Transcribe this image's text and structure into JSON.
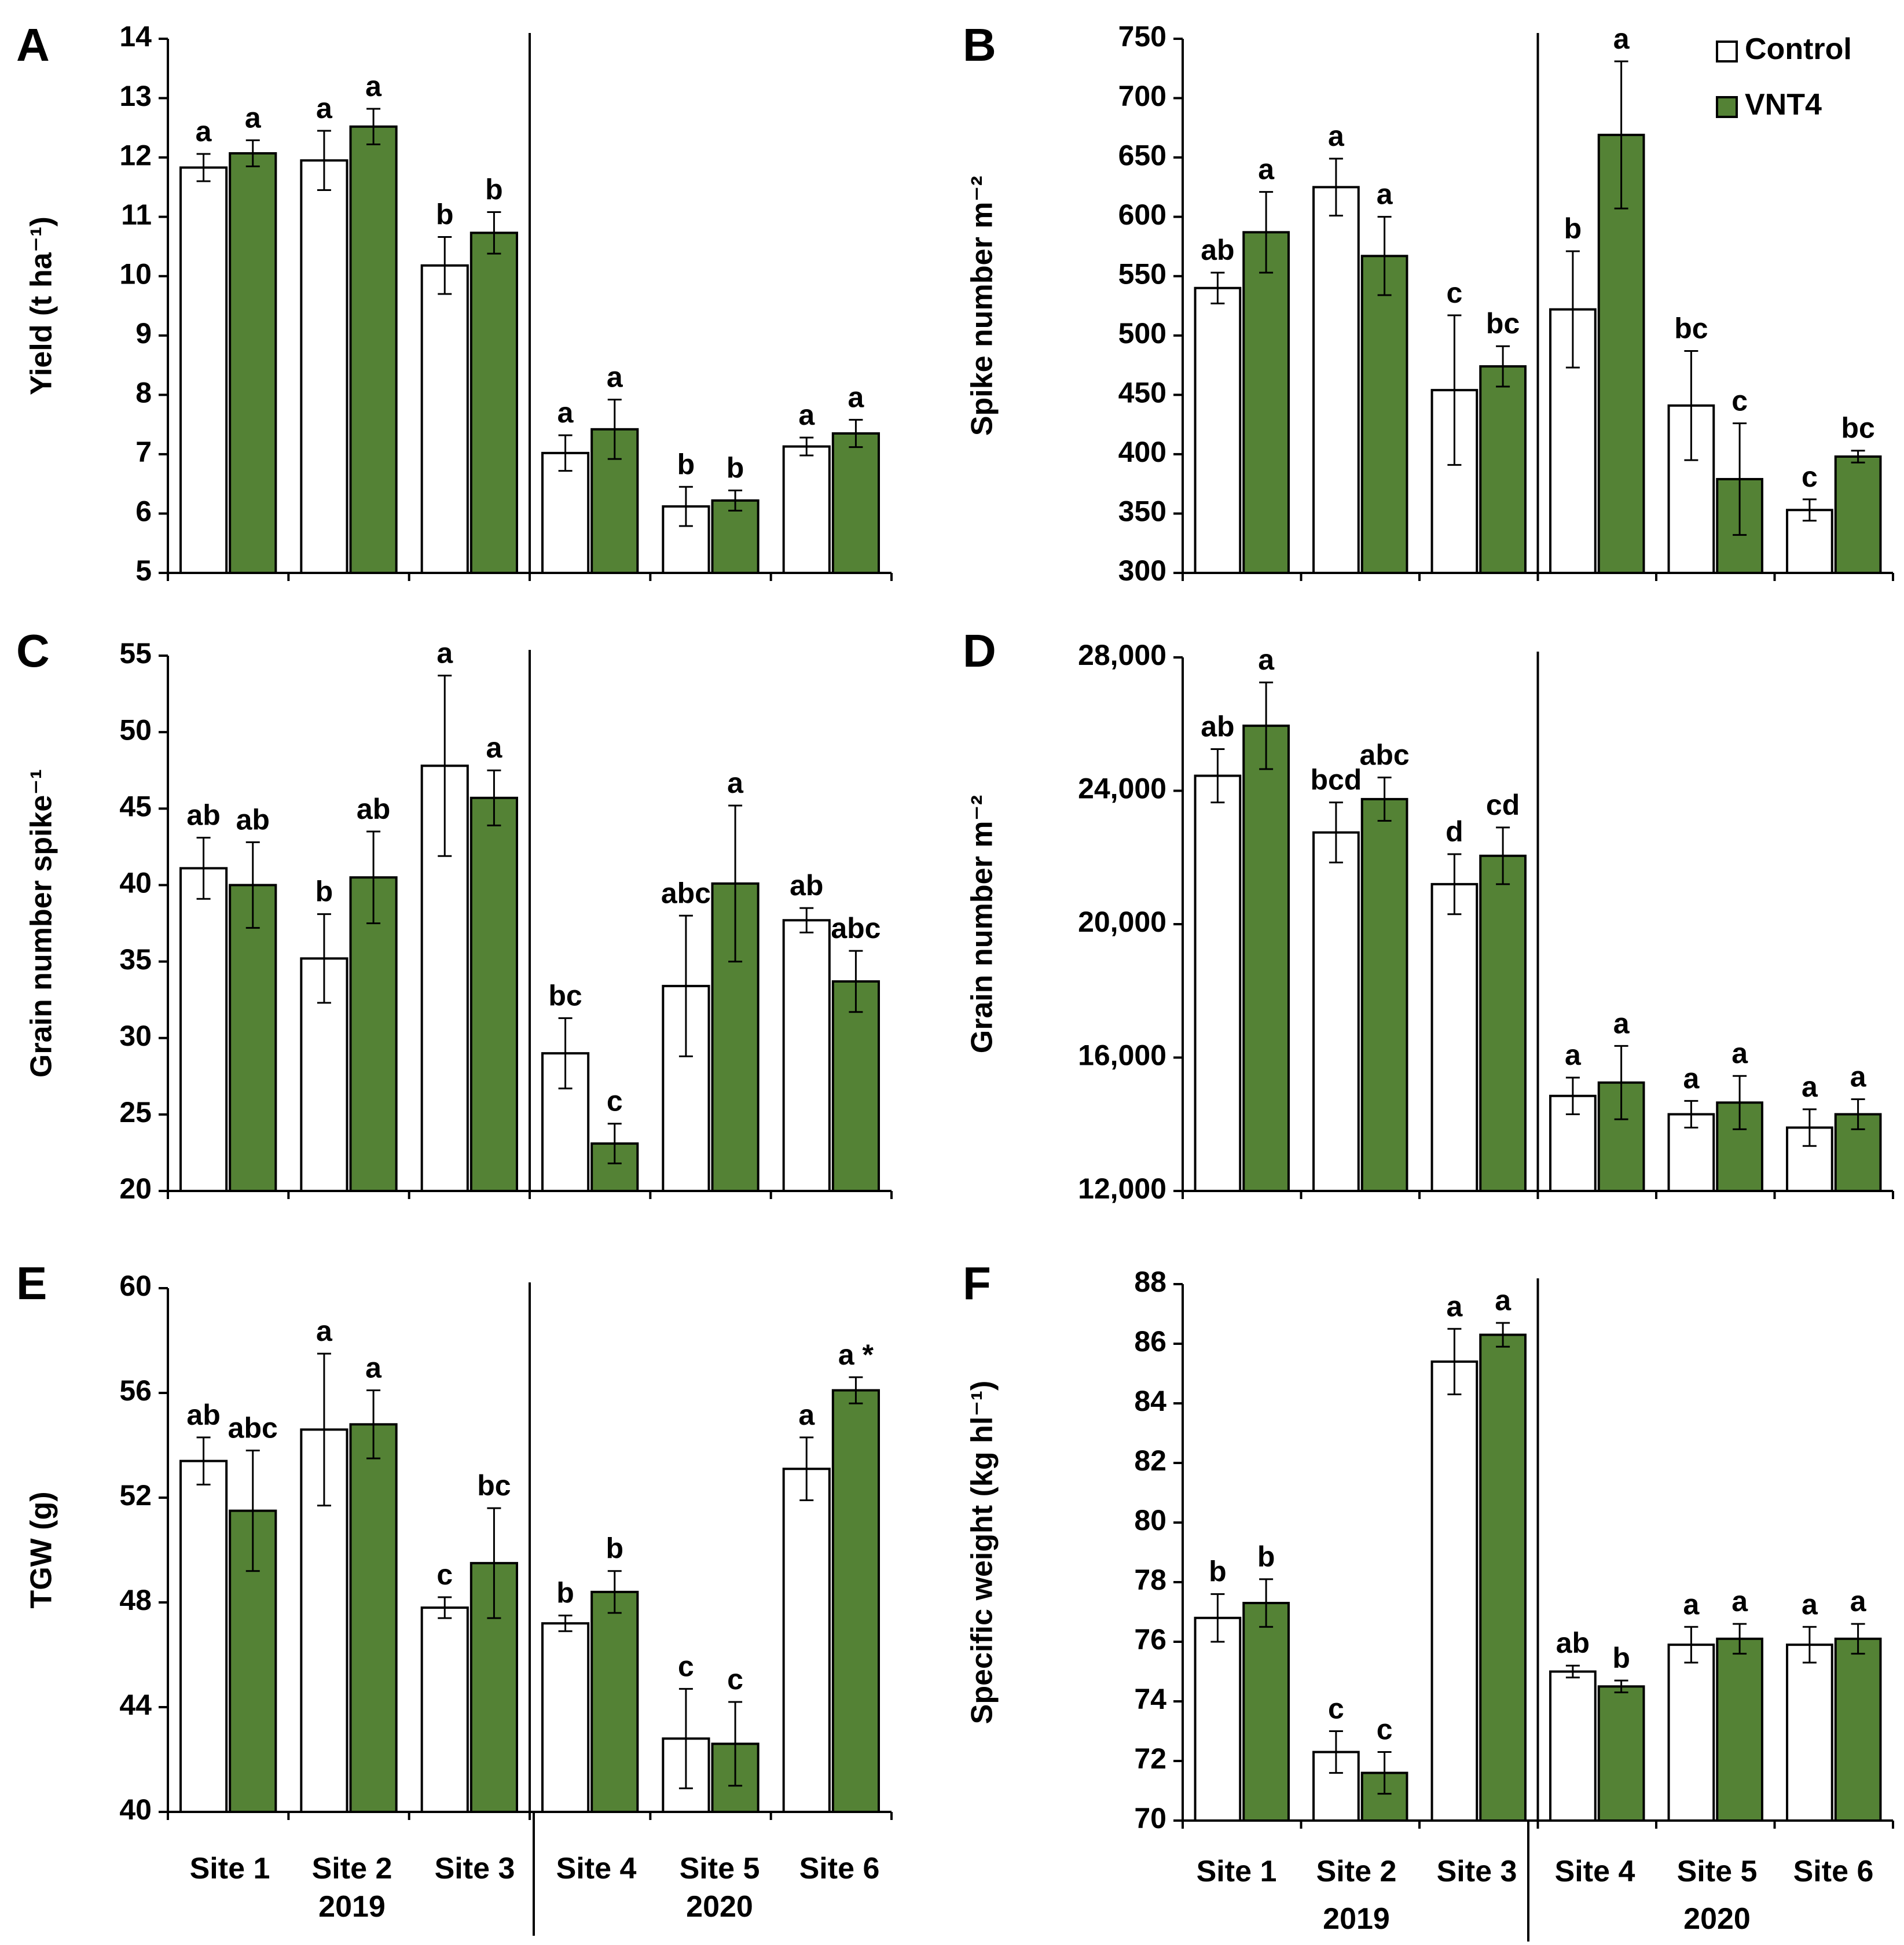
{
  "legend": {
    "entries": [
      "Control",
      "VNT4"
    ],
    "placement": "top-right of panel B"
  },
  "colors": {
    "control_fill": "#ffffff",
    "vnt4_fill": "#548235",
    "stroke": "#000000"
  },
  "x_axis": {
    "sites": [
      "Site 1",
      "Site 2",
      "Site 3",
      "Site 4",
      "Site 5",
      "Site 6"
    ],
    "years": [
      "2019",
      "2020"
    ]
  },
  "chart_data": [
    {
      "panel": "A",
      "type": "bar",
      "ylabel": "Yield (t ha⁻¹)",
      "ylim": [
        5,
        14
      ],
      "yticks": [
        5,
        6,
        7,
        8,
        9,
        10,
        11,
        12,
        13,
        14
      ],
      "ytick_labels": [
        "5",
        "6",
        "7",
        "8",
        "9",
        "10",
        "11",
        "12",
        "13",
        "14"
      ],
      "series": [
        {
          "name": "Control",
          "values": [
            11.83,
            11.95,
            10.18,
            7.02,
            6.12,
            7.13
          ],
          "errors": [
            0.23,
            0.5,
            0.48,
            0.3,
            0.33,
            0.15
          ],
          "letters": [
            "a",
            "a",
            "b",
            "a",
            "b",
            "a"
          ]
        },
        {
          "name": "VNT4",
          "values": [
            12.07,
            12.52,
            10.73,
            7.42,
            6.22,
            7.35
          ],
          "errors": [
            0.22,
            0.3,
            0.35,
            0.5,
            0.17,
            0.23
          ],
          "letters": [
            "a",
            "a",
            "b",
            "a",
            "b",
            "a"
          ]
        }
      ]
    },
    {
      "panel": "B",
      "type": "bar",
      "ylabel": "Spike number m⁻²",
      "ylim": [
        300,
        750
      ],
      "yticks": [
        300,
        350,
        400,
        450,
        500,
        550,
        600,
        650,
        700,
        750
      ],
      "ytick_labels": [
        "300",
        "350",
        "400",
        "450",
        "500",
        "550",
        "600",
        "650",
        "700",
        "750"
      ],
      "series": [
        {
          "name": "Control",
          "values": [
            540,
            625,
            454,
            522,
            441,
            353
          ],
          "errors": [
            13,
            24,
            63,
            49,
            46,
            9
          ],
          "letters": [
            "ab",
            "a",
            "c",
            "b",
            "bc",
            "c"
          ]
        },
        {
          "name": "VNT4",
          "values": [
            587,
            567,
            474,
            669,
            379,
            398
          ],
          "errors": [
            34,
            33,
            17,
            62,
            47,
            5
          ],
          "letters": [
            "a",
            "a",
            "bc",
            "a",
            "c",
            "bc"
          ]
        }
      ]
    },
    {
      "panel": "C",
      "type": "bar",
      "ylabel": "Grain number spike⁻¹",
      "ylim": [
        20,
        55
      ],
      "yticks": [
        20,
        25,
        30,
        35,
        40,
        45,
        50,
        55
      ],
      "ytick_labels": [
        "20",
        "25",
        "30",
        "35",
        "40",
        "45",
        "50",
        "55"
      ],
      "series": [
        {
          "name": "Control",
          "values": [
            41.1,
            35.2,
            47.8,
            29.0,
            33.4,
            37.7
          ],
          "errors": [
            2.0,
            2.9,
            5.9,
            2.3,
            4.6,
            0.8
          ],
          "letters": [
            "ab",
            "b",
            "a",
            "bc",
            "abc",
            "ab"
          ]
        },
        {
          "name": "VNT4",
          "values": [
            40.0,
            40.5,
            45.7,
            23.1,
            40.1,
            33.7
          ],
          "errors": [
            2.8,
            3.0,
            1.8,
            1.3,
            5.1,
            2.0
          ],
          "letters": [
            "ab",
            "ab",
            "a",
            "c",
            "a",
            "abc"
          ]
        }
      ]
    },
    {
      "panel": "D",
      "type": "bar",
      "ylabel": "Grain number m⁻²",
      "ylim": [
        12000,
        28000
      ],
      "yticks": [
        12000,
        16000,
        20000,
        24000,
        28000
      ],
      "ytick_labels": [
        "12,000",
        "16,000",
        "20,000",
        "24,000",
        "28,000"
      ],
      "series": [
        {
          "name": "Control",
          "values": [
            24450,
            22750,
            21200,
            14850,
            14300,
            13900
          ],
          "errors": [
            800,
            900,
            900,
            550,
            400,
            550
          ],
          "letters": [
            "ab",
            "bcd",
            "d",
            "a",
            "a",
            "a"
          ]
        },
        {
          "name": "VNT4",
          "values": [
            25950,
            23750,
            22050,
            15250,
            14650,
            14300
          ],
          "errors": [
            1300,
            650,
            850,
            1100,
            800,
            450
          ],
          "letters": [
            "a",
            "abc",
            "cd",
            "a",
            "a",
            "a"
          ]
        }
      ]
    },
    {
      "panel": "E",
      "type": "bar",
      "ylabel": "TGW (g)",
      "ylim": [
        40,
        60
      ],
      "yticks": [
        40,
        44,
        48,
        52,
        56,
        60
      ],
      "ytick_labels": [
        "40",
        "44",
        "48",
        "52",
        "56",
        "60"
      ],
      "series": [
        {
          "name": "Control",
          "values": [
            53.4,
            54.6,
            47.8,
            47.2,
            42.8,
            53.1
          ],
          "errors": [
            0.9,
            2.9,
            0.4,
            0.3,
            1.9,
            1.2
          ],
          "letters": [
            "ab",
            "a",
            "c",
            "b",
            "c",
            "a"
          ]
        },
        {
          "name": "VNT4",
          "values": [
            51.5,
            54.8,
            49.5,
            48.4,
            42.6,
            56.1
          ],
          "errors": [
            2.3,
            1.3,
            2.1,
            0.8,
            1.6,
            0.5
          ],
          "letters": [
            "abc",
            "a",
            "bc",
            "b",
            "c",
            "a *"
          ]
        }
      ]
    },
    {
      "panel": "F",
      "type": "bar",
      "ylabel": "Specific weight (kg hl⁻¹)",
      "ylim": [
        70,
        88
      ],
      "yticks": [
        70,
        72,
        74,
        76,
        78,
        80,
        82,
        84,
        86,
        88
      ],
      "ytick_labels": [
        "70",
        "72",
        "74",
        "76",
        "78",
        "80",
        "82",
        "84",
        "86",
        "88"
      ],
      "series": [
        {
          "name": "Control",
          "values": [
            76.8,
            72.3,
            85.4,
            75.0,
            75.9,
            75.9
          ],
          "errors": [
            0.8,
            0.7,
            1.1,
            0.2,
            0.6,
            0.6
          ],
          "letters": [
            "b",
            "c",
            "a",
            "ab",
            "a",
            "a"
          ]
        },
        {
          "name": "VNT4",
          "values": [
            77.3,
            71.6,
            86.3,
            74.5,
            76.1,
            76.1
          ],
          "errors": [
            0.8,
            0.7,
            0.4,
            0.2,
            0.5,
            0.5
          ],
          "letters": [
            "b",
            "c",
            "a",
            "b",
            "a",
            "a"
          ]
        }
      ]
    }
  ]
}
